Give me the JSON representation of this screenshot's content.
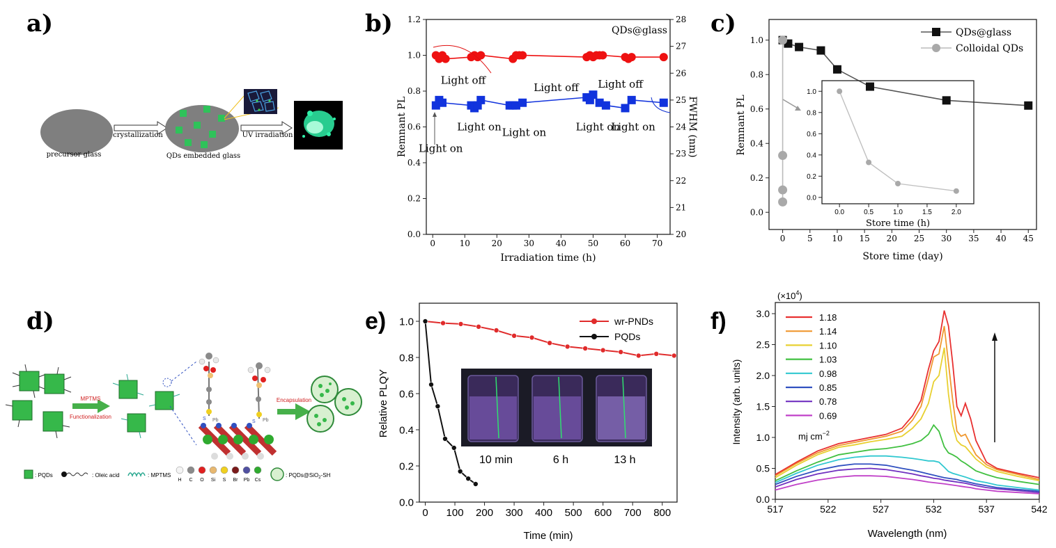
{
  "panels": {
    "a": {
      "letter": "a)",
      "precursor": "precursor glass",
      "step1": "crystallization",
      "embedded": "QDs embedded glass",
      "step2": "UV irradiation",
      "colors": {
        "glass": "#7f7f7f",
        "cube": "#2fc25a",
        "glow": "#2ff0a8"
      }
    },
    "b": {
      "letter": "b)"
    },
    "c": {
      "letter": "c)"
    },
    "d": {
      "letter": "d)",
      "step1_top": "MPTMS",
      "step1_bottom": "Functionalization",
      "step2": "Encapsulation",
      "legend": [
        {
          "label": ": PQDs",
          "icon": "cube"
        },
        {
          "label": ": Oleic acid",
          "icon": "oleic"
        },
        {
          "label": ": MPTMS",
          "icon": "spring"
        },
        {
          "label": "H",
          "icon": "atom",
          "color": "#f4f4f4"
        },
        {
          "label": "C",
          "icon": "atom",
          "color": "#8a8a8a"
        },
        {
          "label": "O",
          "icon": "atom",
          "color": "#e02020"
        },
        {
          "label": "Si",
          "icon": "atom",
          "color": "#e8b870"
        },
        {
          "label": "S",
          "icon": "atom",
          "color": "#f0d020"
        },
        {
          "label": "Br",
          "icon": "atom",
          "color": "#7a1a1a"
        },
        {
          "label": "Pb",
          "icon": "atom",
          "color": "#5050a0"
        },
        {
          "label": "Cs",
          "icon": "atom",
          "color": "#2faa2f"
        }
      ],
      "legend_last": ": PQDs@SiO",
      "legend_last_sub": "2",
      "legend_last_tail": "-SH",
      "pb_label": "Pb",
      "s_label": "S"
    },
    "e": {
      "letter": "e)",
      "photo_labels": [
        "10 min",
        "6 h",
        "13 h"
      ]
    },
    "f": {
      "letter": "f)",
      "unit": "mj cm"
    }
  },
  "chart_data": [
    {
      "id": "b",
      "type": "scatter",
      "title": "QDs@glass",
      "xlabel": "Irradiation time (h)",
      "ylabel": "Remnant PL",
      "y2label": "FWHM (nm)",
      "xlim": [
        -2,
        74
      ],
      "ylim": [
        0,
        1.2
      ],
      "y2lim": [
        20,
        28
      ],
      "xticks": [
        0,
        10,
        20,
        30,
        40,
        50,
        60,
        70
      ],
      "yticks": [
        0.0,
        0.2,
        0.4,
        0.6,
        0.8,
        1.0,
        1.2
      ],
      "y2ticks": [
        20,
        21,
        22,
        23,
        24,
        25,
        26,
        27,
        28
      ],
      "series": [
        {
          "name": "Remnant PL",
          "axis": "left",
          "marker": "circle",
          "color": "#ee1111",
          "x": [
            1,
            2,
            3,
            4,
            12,
            13,
            14,
            15,
            25,
            26,
            27,
            28,
            48,
            49,
            50,
            51,
            52,
            53,
            60,
            61,
            62,
            72
          ],
          "y": [
            1.0,
            0.98,
            1.0,
            0.98,
            0.99,
            1.0,
            0.99,
            1.0,
            0.98,
            1.0,
            1.0,
            1.0,
            0.99,
            1.0,
            0.99,
            1.0,
            1.0,
            1.0,
            0.99,
            0.98,
            0.99,
            0.99
          ]
        },
        {
          "name": "FWHM",
          "axis": "right",
          "marker": "square",
          "color": "#1133dd",
          "x": [
            1,
            2,
            3,
            12,
            13,
            14,
            15,
            24,
            25,
            26,
            28,
            48,
            49,
            50,
            52,
            54,
            60,
            62,
            72
          ],
          "y": [
            24.8,
            25.0,
            24.9,
            24.8,
            24.7,
            24.8,
            25.0,
            24.8,
            24.8,
            24.8,
            24.9,
            25.1,
            25.0,
            25.2,
            24.9,
            24.8,
            24.7,
            25.0,
            24.9
          ]
        }
      ],
      "annotations": [
        {
          "text": "Light off",
          "x": 9.5,
          "y": 0.84
        },
        {
          "text": "Light off",
          "x": 38.5,
          "y": 0.8
        },
        {
          "text": "Light off",
          "x": 58.5,
          "y": 0.82
        },
        {
          "text": "Light on",
          "x": 2.5,
          "y": 0.46
        },
        {
          "text": "Light on",
          "x": 14.5,
          "y": 0.58
        },
        {
          "text": "Light on",
          "x": 28.5,
          "y": 0.55
        },
        {
          "text": "Light on",
          "x": 51.5,
          "y": 0.58
        },
        {
          "text": "Light on",
          "x": 62.5,
          "y": 0.58
        }
      ]
    },
    {
      "id": "c",
      "type": "line",
      "xlabel": "Store time (day)",
      "ylabel": "Remnant PL",
      "xlim": [
        -2.5,
        46.5
      ],
      "ylim": [
        -0.1,
        1.12
      ],
      "xticks": [
        0,
        5,
        10,
        15,
        20,
        25,
        30,
        35,
        40,
        45
      ],
      "yticks": [
        0.0,
        0.2,
        0.4,
        0.6,
        0.8,
        1.0
      ],
      "legend": "top-right",
      "series": [
        {
          "name": "QDs@glass",
          "marker": "square",
          "color": "#111111",
          "line_color": "#555555",
          "x": [
            0,
            1,
            3,
            7,
            10,
            16,
            30,
            45
          ],
          "y": [
            1.0,
            0.98,
            0.96,
            0.94,
            0.83,
            0.73,
            0.65,
            0.62
          ]
        },
        {
          "name": "Colloidal QDs",
          "marker": "circle",
          "color": "#a9a9a9",
          "line_color": "#bbbbbb",
          "x": [
            0,
            0,
            0,
            0
          ],
          "y": [
            1.0,
            0.33,
            0.13,
            0.06
          ]
        }
      ],
      "inset": {
        "xlabel": "Store time (h)",
        "xlim": [
          -0.3,
          2.3
        ],
        "ylim": [
          -0.06,
          1.1
        ],
        "xticks": [
          0.0,
          0.5,
          1.0,
          1.5,
          2.0
        ],
        "yticks": [
          0.0,
          0.2,
          0.4,
          0.6,
          0.8,
          1.0
        ],
        "series": [
          {
            "name": "Colloidal QDs",
            "x": [
              0.0,
              0.5,
              1.0,
              2.0
            ],
            "y": [
              1.0,
              0.33,
              0.13,
              0.06
            ]
          }
        ]
      }
    },
    {
      "id": "e",
      "type": "line",
      "xlabel": "Time (min)",
      "ylabel": "Relative PLQY",
      "xlim": [
        -20,
        850
      ],
      "ylim": [
        0,
        1.1
      ],
      "xticks": [
        0,
        100,
        200,
        300,
        400,
        500,
        600,
        700,
        800
      ],
      "yticks": [
        0.0,
        0.2,
        0.4,
        0.6,
        0.8,
        1.0
      ],
      "legend": "top-right",
      "series": [
        {
          "name": "wr-PNDs",
          "color": "#e02b2b",
          "x": [
            0,
            60,
            120,
            180,
            240,
            300,
            360,
            420,
            480,
            540,
            600,
            660,
            720,
            780,
            840
          ],
          "y": [
            1.0,
            0.99,
            0.985,
            0.97,
            0.95,
            0.92,
            0.91,
            0.88,
            0.86,
            0.85,
            0.84,
            0.83,
            0.81,
            0.82,
            0.81
          ]
        },
        {
          "name": "PQDs",
          "color": "#111111",
          "x": [
            0,
            20,
            42,
            67,
            97,
            118,
            145,
            170
          ],
          "y": [
            1.0,
            0.65,
            0.53,
            0.35,
            0.3,
            0.17,
            0.13,
            0.1
          ]
        }
      ]
    },
    {
      "id": "f",
      "type": "line",
      "xlabel": "Wavelength (nm)",
      "ylabel": "Intensity (arb. units)",
      "scale_label": "(×10",
      "scale_exp": "4",
      "xlim": [
        517,
        542
      ],
      "ylim": [
        0,
        3.18
      ],
      "xticks": [
        517,
        522,
        527,
        532,
        537,
        542
      ],
      "yticks": [
        0.0,
        0.5,
        1.0,
        1.5,
        2.0,
        2.5,
        3.0
      ],
      "legend_title_unit": "mj cm",
      "legend_unit_exp": "−2",
      "x": [
        517,
        519,
        521,
        523,
        524.5,
        526,
        527.5,
        529,
        530,
        530.8,
        531.5,
        532,
        532.5,
        533,
        533.4,
        533.8,
        534.2,
        534.6,
        535,
        535.5,
        536,
        537,
        538,
        540,
        542
      ],
      "series": [
        {
          "name": "1.18",
          "color": "#e83030",
          "values": [
            0.4,
            0.6,
            0.78,
            0.9,
            0.95,
            1.0,
            1.05,
            1.15,
            1.35,
            1.6,
            2.1,
            2.4,
            2.55,
            3.05,
            2.8,
            2.2,
            1.5,
            1.35,
            1.55,
            1.3,
            0.95,
            0.6,
            0.5,
            0.42,
            0.35
          ]
        },
        {
          "name": "1.14",
          "color": "#f09830",
          "values": [
            0.38,
            0.58,
            0.75,
            0.87,
            0.92,
            0.97,
            1.02,
            1.1,
            1.28,
            1.5,
            1.95,
            2.3,
            2.35,
            2.8,
            2.2,
            1.6,
            1.1,
            1.02,
            1.05,
            0.88,
            0.72,
            0.56,
            0.48,
            0.4,
            0.32
          ]
        },
        {
          "name": "1.10",
          "color": "#e8d030",
          "values": [
            0.35,
            0.55,
            0.72,
            0.84,
            0.88,
            0.93,
            0.97,
            1.02,
            1.15,
            1.3,
            1.55,
            1.9,
            2.0,
            2.45,
            1.7,
            1.2,
            0.95,
            0.88,
            0.85,
            0.75,
            0.65,
            0.52,
            0.45,
            0.37,
            0.3
          ]
        },
        {
          "name": "1.03",
          "color": "#40c040",
          "values": [
            0.3,
            0.46,
            0.6,
            0.72,
            0.76,
            0.8,
            0.82,
            0.86,
            0.9,
            0.95,
            1.05,
            1.2,
            1.1,
            0.85,
            0.75,
            0.72,
            0.68,
            0.62,
            0.58,
            0.52,
            0.46,
            0.4,
            0.35,
            0.29,
            0.24
          ]
        },
        {
          "name": "0.98",
          "color": "#30c8d0",
          "values": [
            0.27,
            0.42,
            0.55,
            0.64,
            0.68,
            0.7,
            0.7,
            0.68,
            0.66,
            0.64,
            0.62,
            0.62,
            0.6,
            0.52,
            0.45,
            0.42,
            0.4,
            0.38,
            0.36,
            0.33,
            0.3,
            0.27,
            0.23,
            0.19,
            0.15
          ]
        },
        {
          "name": "0.85",
          "color": "#3050c0",
          "values": [
            0.24,
            0.37,
            0.47,
            0.54,
            0.57,
            0.57,
            0.55,
            0.5,
            0.47,
            0.44,
            0.41,
            0.39,
            0.37,
            0.35,
            0.34,
            0.33,
            0.32,
            0.3,
            0.29,
            0.27,
            0.25,
            0.22,
            0.19,
            0.16,
            0.13
          ]
        },
        {
          "name": "0.78",
          "color": "#7030c0",
          "values": [
            0.2,
            0.32,
            0.41,
            0.47,
            0.49,
            0.5,
            0.48,
            0.44,
            0.41,
            0.38,
            0.36,
            0.34,
            0.33,
            0.31,
            0.3,
            0.29,
            0.28,
            0.27,
            0.26,
            0.24,
            0.22,
            0.19,
            0.17,
            0.14,
            0.11
          ]
        },
        {
          "name": "0.69",
          "color": "#c040c8",
          "values": [
            0.15,
            0.24,
            0.31,
            0.36,
            0.38,
            0.38,
            0.37,
            0.34,
            0.32,
            0.3,
            0.28,
            0.27,
            0.26,
            0.25,
            0.24,
            0.23,
            0.22,
            0.21,
            0.2,
            0.19,
            0.17,
            0.15,
            0.13,
            0.11,
            0.09
          ]
        }
      ]
    }
  ]
}
